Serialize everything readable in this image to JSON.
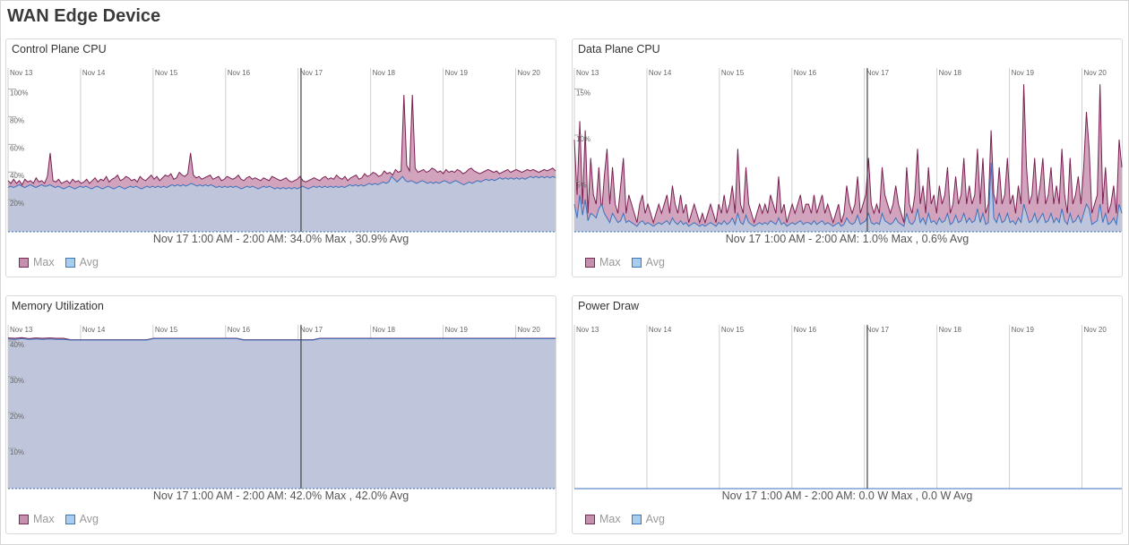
{
  "title": "WAN Edge Device",
  "legend": {
    "max_label": "Max",
    "avg_label": "Avg"
  },
  "colors": {
    "max_fill": "#d2a3bd",
    "max_line": "#7b2052",
    "avg_fill": "#bfc6dc",
    "avg_line": "#3b72bd",
    "gridline": "#cfcfcf",
    "cursor": "#444444"
  },
  "x_ticks": [
    "Nov 13",
    "Nov 14",
    "Nov 15",
    "Nov 16",
    "Nov 17",
    "Nov 18",
    "Nov 19",
    "Nov 20"
  ],
  "cursor_time": "Nov 17 1:00 AM - 2:00 AM",
  "chart_data": [
    {
      "id": "cp",
      "type": "area",
      "title": "Control Plane CPU",
      "x_domain_days": [
        0,
        7.55
      ],
      "y_ticks": [
        "100%",
        "80%",
        "60%",
        "40%",
        "20%"
      ],
      "y_tick_values": [
        100,
        80,
        60,
        40,
        20
      ],
      "ylim": [
        0,
        110
      ],
      "summary": "Nov 17 1:00 AM - 2:00 AM: 34.0% Max , 30.9% Avg",
      "series": [
        {
          "name": "Max",
          "values": [
            37,
            35,
            38,
            35,
            37,
            34,
            38,
            36,
            37,
            35,
            39,
            36,
            37,
            35,
            40,
            57,
            37,
            36,
            38,
            35,
            36,
            37,
            35,
            38,
            36,
            37,
            35,
            36,
            38,
            35,
            37,
            39,
            36,
            38,
            37,
            40,
            36,
            38,
            39,
            41,
            37,
            38,
            40,
            39,
            37,
            38,
            36,
            40,
            38,
            37,
            39,
            41,
            38,
            40,
            37,
            39,
            41,
            40,
            42,
            38,
            39,
            43,
            41,
            40,
            42,
            57,
            41,
            39,
            40,
            38,
            39,
            40,
            41,
            38,
            39,
            40,
            37,
            38,
            40,
            39,
            38,
            39,
            41,
            38,
            37,
            39,
            40,
            38,
            39,
            38,
            37,
            39,
            38,
            37,
            40,
            39,
            38,
            37,
            38,
            39,
            37,
            36,
            37,
            38,
            40,
            37,
            36,
            37,
            38,
            39,
            38,
            37,
            39,
            40,
            38,
            39,
            38,
            41,
            39,
            38,
            40,
            37,
            39,
            40,
            41,
            38,
            39,
            42,
            40,
            41,
            43,
            42,
            40,
            41,
            44,
            42,
            43,
            41,
            45,
            43,
            44,
            99,
            48,
            44,
            99,
            46,
            43,
            44,
            45,
            43,
            44,
            46,
            45,
            43,
            44,
            42,
            45,
            43,
            44,
            43,
            45,
            44,
            42,
            43,
            45,
            46,
            44,
            43,
            42,
            43,
            44,
            45,
            44,
            43,
            44,
            42,
            43,
            44,
            45,
            43,
            44,
            45,
            44,
            43,
            44,
            45,
            44,
            45,
            44,
            43,
            44,
            45,
            44,
            45,
            46,
            44
          ]
        },
        {
          "name": "Avg",
          "values": [
            32,
            33,
            32,
            33,
            34,
            33,
            32,
            33,
            34,
            33,
            32,
            33,
            34,
            33,
            33,
            34,
            33,
            32,
            33,
            32,
            31,
            32,
            33,
            32,
            31,
            32,
            33,
            32,
            33,
            32,
            31,
            32,
            33,
            32,
            31,
            32,
            33,
            32,
            31,
            32,
            33,
            32,
            31,
            32,
            33,
            32,
            33,
            32,
            31,
            32,
            33,
            32,
            33,
            32,
            33,
            32,
            33,
            32,
            33,
            34,
            33,
            34,
            33,
            34,
            33,
            34,
            35,
            34,
            33,
            34,
            33,
            34,
            33,
            34,
            33,
            32,
            33,
            32,
            33,
            32,
            33,
            32,
            33,
            32,
            31,
            32,
            33,
            32,
            33,
            32,
            31,
            32,
            33,
            32,
            33,
            32,
            31,
            32,
            31,
            32,
            31,
            32,
            31,
            32,
            31,
            32,
            33,
            32,
            31,
            32,
            33,
            32,
            33,
            32,
            33,
            32,
            33,
            32,
            33,
            32,
            33,
            32,
            33,
            34,
            33,
            34,
            33,
            34,
            33,
            34,
            35,
            34,
            35,
            34,
            35,
            36,
            35,
            36,
            40,
            38,
            36,
            38,
            40,
            37,
            36,
            37,
            36,
            35,
            36,
            37,
            36,
            35,
            36,
            35,
            36,
            35,
            36,
            37,
            36,
            35,
            36,
            37,
            36,
            35,
            34,
            35,
            36,
            35,
            36,
            37,
            36,
            37,
            38,
            37,
            38,
            37,
            38,
            39,
            38,
            39,
            38,
            39,
            38,
            39,
            38,
            39,
            38,
            39,
            40,
            39,
            40,
            39,
            40,
            39,
            40,
            39,
            40,
            39
          ]
        }
      ]
    },
    {
      "id": "dp",
      "type": "area",
      "title": "Data Plane CPU",
      "x_domain_days": [
        0,
        7.55
      ],
      "y_ticks": [
        "15%",
        "10%",
        "5%"
      ],
      "y_tick_values": [
        15,
        10,
        5
      ],
      "ylim": [
        0,
        16.5
      ],
      "summary": "Nov 17 1:00 AM - 2:00 AM: 1.0% Max , 0.6% Avg",
      "series": [
        {
          "name": "Max",
          "values": [
            10,
            4,
            12,
            3,
            11,
            2,
            8,
            4,
            3,
            7,
            2,
            6,
            9,
            3,
            7,
            3,
            2,
            5,
            8,
            2,
            4,
            3,
            2,
            1,
            3,
            4,
            2,
            3,
            2,
            1,
            2,
            3,
            2,
            3,
            4,
            2,
            5,
            3,
            2,
            4,
            2,
            3,
            1,
            2,
            3,
            2,
            1,
            2,
            1,
            2,
            3,
            2,
            1,
            3,
            2,
            4,
            2,
            3,
            5,
            2,
            9,
            3,
            2,
            7,
            3,
            2,
            1,
            2,
            3,
            2,
            3,
            2,
            4,
            3,
            2,
            6,
            2,
            3,
            1,
            2,
            3,
            2,
            3,
            4,
            2,
            3,
            3,
            2,
            4,
            2,
            3,
            4,
            2,
            3,
            2,
            1,
            2,
            3,
            1,
            2,
            5,
            3,
            2,
            3,
            6,
            2,
            3,
            4,
            8,
            3,
            2,
            3,
            2,
            7,
            4,
            3,
            2,
            3,
            5,
            3,
            2,
            1,
            7,
            3,
            2,
            4,
            9,
            3,
            5,
            2,
            7,
            3,
            4,
            2,
            5,
            3,
            4,
            7,
            2,
            3,
            6,
            3,
            4,
            8,
            3,
            5,
            3,
            4,
            9,
            3,
            8,
            2,
            3,
            11,
            4,
            3,
            7,
            3,
            4,
            8,
            3,
            4,
            2,
            5,
            3,
            16,
            7,
            3,
            4,
            8,
            3,
            5,
            8,
            3,
            4,
            7,
            3,
            5,
            3,
            9,
            4,
            2,
            8,
            3,
            4,
            6,
            3,
            7,
            13,
            9,
            2,
            3,
            4,
            16,
            3,
            7,
            2,
            3,
            5,
            2,
            10,
            7
          ]
        },
        {
          "name": "Avg",
          "values": [
            3,
            1.5,
            4,
            1.8,
            3.5,
            1.2,
            2,
            1.8,
            1.5,
            2.5,
            3,
            2,
            1.5,
            1,
            2,
            1.5,
            1,
            1.2,
            2,
            1,
            1.2,
            1,
            0.8,
            0.6,
            1,
            1.2,
            0.8,
            1,
            0.8,
            0.6,
            0.8,
            1,
            0.8,
            1,
            1.2,
            0.8,
            1.5,
            1,
            0.8,
            1.2,
            0.8,
            1,
            0.6,
            0.8,
            1,
            0.8,
            0.6,
            0.8,
            0.6,
            0.8,
            1,
            0.8,
            0.6,
            1,
            0.8,
            1.2,
            0.8,
            1,
            1.5,
            0.8,
            2,
            1,
            0.8,
            1.8,
            1,
            0.8,
            0.6,
            0.8,
            1,
            0.8,
            1,
            0.8,
            1.2,
            1,
            0.8,
            1.5,
            0.8,
            1,
            0.6,
            0.8,
            1,
            0.8,
            1,
            1.2,
            0.8,
            1,
            1,
            0.8,
            1.2,
            0.8,
            1,
            1.2,
            0.8,
            1,
            0.8,
            0.6,
            0.8,
            1,
            0.6,
            0.8,
            1.5,
            1,
            0.8,
            1,
            1.8,
            0.8,
            1,
            1.2,
            2,
            1,
            0.8,
            1,
            0.8,
            2,
            1.2,
            1,
            0.8,
            1,
            1.5,
            1,
            0.8,
            0.6,
            2,
            1,
            0.8,
            1.2,
            2.5,
            1,
            1.5,
            0.8,
            2,
            1,
            1.2,
            0.8,
            1.5,
            1,
            1.2,
            2,
            0.8,
            1,
            1.8,
            1,
            1.2,
            2,
            1,
            1.5,
            1,
            1.2,
            2.5,
            1,
            2,
            0.8,
            1,
            7.5,
            1.5,
            1,
            2,
            1,
            1.2,
            2,
            1,
            1.2,
            0.8,
            1.5,
            1,
            3,
            2,
            1,
            1.2,
            2,
            1,
            1.5,
            2,
            1,
            1.2,
            2,
            1,
            1.5,
            1,
            2.5,
            1.2,
            0.8,
            2,
            1,
            1.2,
            1.8,
            1,
            2,
            3,
            2.5,
            0.8,
            1,
            1.2,
            3,
            1,
            2,
            0.8,
            1,
            1.5,
            0.8,
            3,
            2
          ]
        }
      ]
    },
    {
      "id": "mem",
      "type": "area",
      "title": "Memory Utilization",
      "x_domain_days": [
        0,
        7.55
      ],
      "y_ticks": [
        "40%",
        "30%",
        "20%",
        "10%"
      ],
      "y_tick_values": [
        40,
        30,
        20,
        10
      ],
      "ylim": [
        0,
        42.5
      ],
      "summary": "Nov 17 1:00 AM - 2:00 AM: 42.0% Max , 42.0% Avg",
      "series": [
        {
          "name": "Max",
          "values": [
            42.1,
            42.0,
            42.2,
            41.9,
            42.1,
            42.0,
            42.1,
            42.0,
            42.0,
            41.6,
            41.6,
            41.6,
            41.6,
            41.6,
            41.6,
            41.6,
            41.6,
            41.6,
            41.6,
            41.6,
            41.6,
            42.0,
            42.0,
            42.0,
            42.0,
            42.0,
            42.0,
            42.0,
            42.0,
            42.0,
            42.0,
            42.0,
            42.0,
            42.0,
            41.6,
            41.6,
            41.6,
            41.6,
            41.6,
            41.6,
            41.6,
            41.6,
            41.6,
            41.6,
            41.6,
            42.0,
            42.0,
            42.0,
            42.0,
            42.0,
            42.0,
            42.0,
            42.0,
            42.0,
            42.0,
            42.0,
            42.0,
            42.0,
            42.0,
            42.0,
            42.0,
            42.0,
            42.0,
            42.0,
            42.0,
            42.0,
            42.0,
            42.0,
            42.0,
            42.0,
            42.0,
            42.0,
            42.0,
            42.0,
            42.0,
            42.0,
            42.0,
            42.0,
            42.0,
            42.0
          ]
        },
        {
          "name": "Avg",
          "values": [
            41.8,
            41.7,
            41.9,
            41.7,
            41.8,
            41.7,
            41.8,
            41.7,
            41.7,
            41.5,
            41.5,
            41.5,
            41.5,
            41.5,
            41.5,
            41.5,
            41.5,
            41.5,
            41.5,
            41.5,
            41.5,
            41.9,
            41.9,
            41.9,
            41.9,
            41.9,
            41.9,
            41.9,
            41.9,
            41.9,
            41.9,
            41.9,
            41.9,
            41.9,
            41.5,
            41.5,
            41.5,
            41.5,
            41.5,
            41.5,
            41.5,
            41.5,
            41.5,
            41.5,
            41.5,
            41.9,
            41.9,
            41.9,
            41.9,
            41.9,
            41.9,
            41.9,
            41.9,
            41.9,
            41.9,
            41.9,
            41.9,
            41.9,
            41.9,
            41.9,
            41.9,
            41.9,
            41.9,
            41.9,
            41.9,
            41.9,
            41.9,
            41.9,
            41.9,
            41.9,
            41.9,
            41.9,
            41.9,
            41.9,
            41.9,
            41.9,
            41.9,
            41.9,
            41.9,
            41.9
          ]
        }
      ]
    },
    {
      "id": "pwr",
      "type": "area",
      "title": "Power Draw",
      "x_domain_days": [
        0,
        7.55
      ],
      "y_ticks": [],
      "y_tick_values": [],
      "ylim": [
        0,
        1
      ],
      "summary": "Nov 17 1:00 AM - 2:00 AM: 0.0 W Max , 0.0 W Avg",
      "series": [
        {
          "name": "Max",
          "values": [
            0,
            0,
            0,
            0,
            0,
            0,
            0,
            0,
            0,
            0,
            0,
            0,
            0,
            0,
            0,
            0,
            0,
            0,
            0,
            0
          ]
        },
        {
          "name": "Avg",
          "values": [
            0,
            0,
            0,
            0,
            0,
            0,
            0,
            0,
            0,
            0,
            0,
            0,
            0,
            0,
            0,
            0,
            0,
            0,
            0,
            0
          ]
        }
      ]
    }
  ]
}
